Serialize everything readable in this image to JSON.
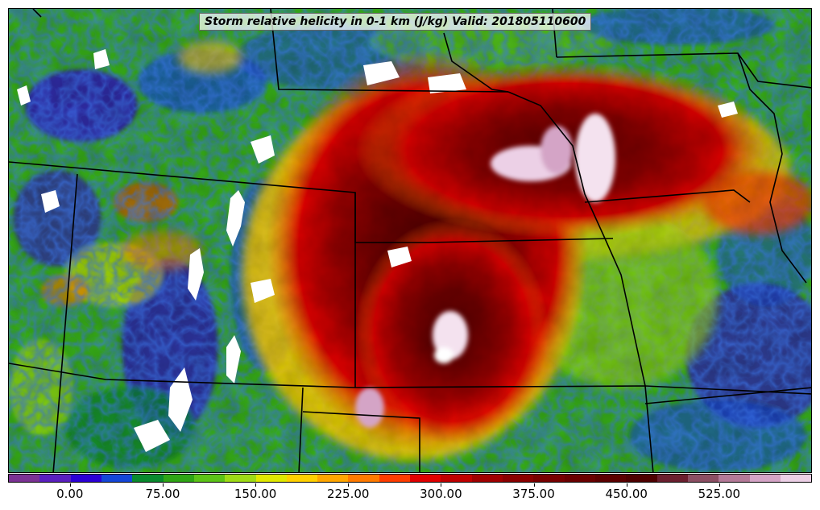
{
  "title": "Storm relative helicity in 0-1 km (J/kg) Valid: 201805110600",
  "colorbar": {
    "min": -50,
    "max": 600,
    "step": 25,
    "colors": [
      "#7b3294",
      "#5a1fbf",
      "#2b00d6",
      "#1446d8",
      "#0a8a2e",
      "#2fa515",
      "#5cc317",
      "#9edb16",
      "#e0e800",
      "#ffd000",
      "#ffa600",
      "#ff7a00",
      "#ff3c00",
      "#e00000",
      "#c00000",
      "#a00000",
      "#8a0000",
      "#780000",
      "#6a0000",
      "#5c0000",
      "#4e0000",
      "#6b1f2f",
      "#8c4f63",
      "#b47a98",
      "#d4a4c6",
      "#ecd0e6"
    ],
    "tick_values": [
      0,
      75,
      150,
      225,
      300,
      375,
      450,
      525
    ],
    "tick_labels": [
      "0.00",
      "75.00",
      "150.00",
      "225.00",
      "300.00",
      "375.00",
      "450.00",
      "525.00"
    ]
  },
  "map_field": {
    "variable": "Storm relative helicity 0-1 km",
    "units": "J/kg",
    "valid": "201805110600"
  }
}
